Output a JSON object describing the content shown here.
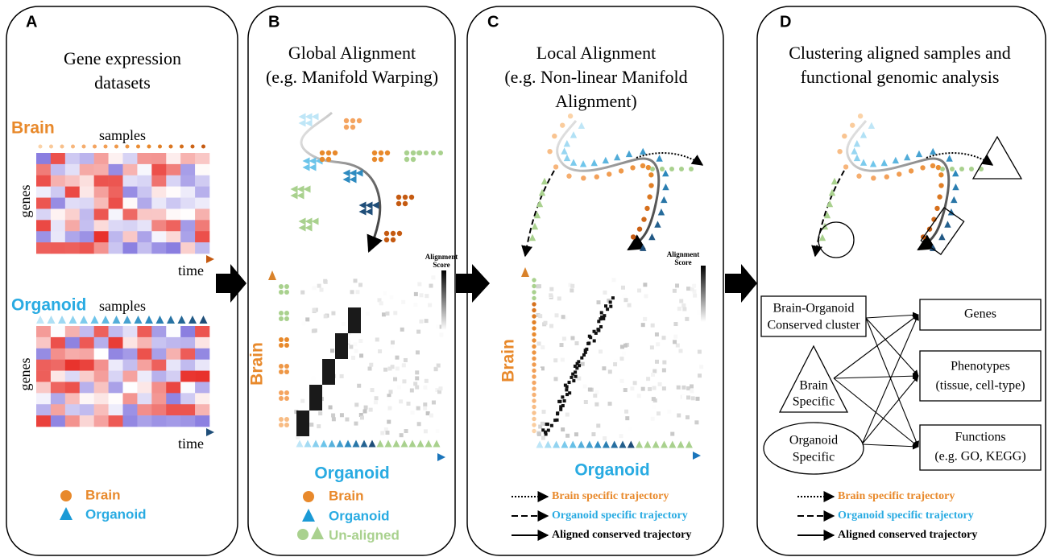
{
  "panels": [
    {
      "letter": "A",
      "title": [
        "Gene expression",
        "datasets"
      ],
      "brain": {
        "label": "Brain",
        "x_label": "samples",
        "y_label": "genes",
        "axis": "time"
      },
      "organoid": {
        "label": "Organoid",
        "x_label": "samples",
        "y_label": "genes",
        "axis": "time"
      },
      "legend": [
        "Brain",
        "Organoid"
      ]
    },
    {
      "letter": "B",
      "title": [
        "Global Alignment",
        "(e.g. Manifold Warping)"
      ],
      "score_label": [
        "Alignment",
        "Score"
      ],
      "y_label": "Brain",
      "x_label": "Organoid",
      "legend": [
        "Brain",
        "Organoid",
        "Un-aligned"
      ]
    },
    {
      "letter": "C",
      "title": [
        "Local Alignment",
        "(e.g. Non-linear Manifold",
        "Alignment)"
      ],
      "score_label": [
        "Alignment",
        "Score"
      ],
      "y_label": "Brain",
      "x_label": "Organoid",
      "legend": [
        "Brain specific trajectory",
        "Organoid specific trajectory",
        "Aligned conserved trajectory"
      ]
    },
    {
      "letter": "D",
      "title": [
        "Clustering aligned samples and",
        "functional genomic analysis"
      ],
      "nodes": [
        {
          "label": [
            "Brain-Organoid",
            "Conserved cluster"
          ]
        },
        {
          "label": [
            "Brain",
            "Specific"
          ]
        },
        {
          "label": [
            "Organoid",
            "Specific"
          ]
        },
        {
          "label": [
            "Genes"
          ]
        },
        {
          "label": [
            "Phenotypes",
            "(tissue, cell-type)"
          ]
        },
        {
          "label": [
            "Functions",
            "(e.g. GO, KEGG)"
          ]
        }
      ],
      "legend": [
        "Brain specific trajectory",
        "Organoid specific trajectory",
        "Aligned conserved trajectory"
      ]
    }
  ]
}
